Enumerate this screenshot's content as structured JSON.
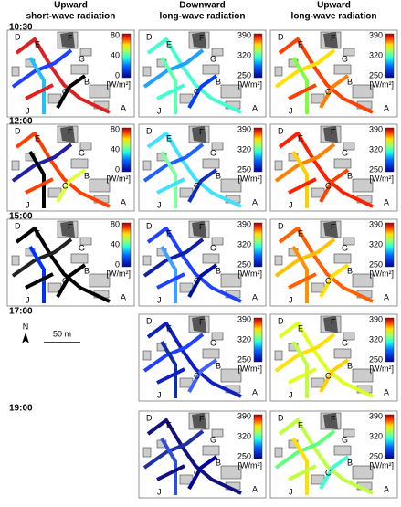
{
  "columns": [
    {
      "line1": "Upward",
      "line2": "short-wave radiation"
    },
    {
      "line1": "Downward",
      "line2": "long-wave radiation"
    },
    {
      "line1": "Upward",
      "line2": "long-wave radiation"
    }
  ],
  "rows": [
    "10:30",
    "12:00",
    "15:00",
    "17:00",
    "19:00"
  ],
  "colorbar": {
    "shortwave": [
      "80",
      "40",
      "0"
    ],
    "longwave": [
      "390",
      "320",
      "250"
    ],
    "unit": "[W/m²]"
  },
  "site_labels": [
    "D",
    "E",
    "F",
    "G",
    "B",
    "C",
    "J",
    "A"
  ],
  "north": "N",
  "scale": "50 m"
}
